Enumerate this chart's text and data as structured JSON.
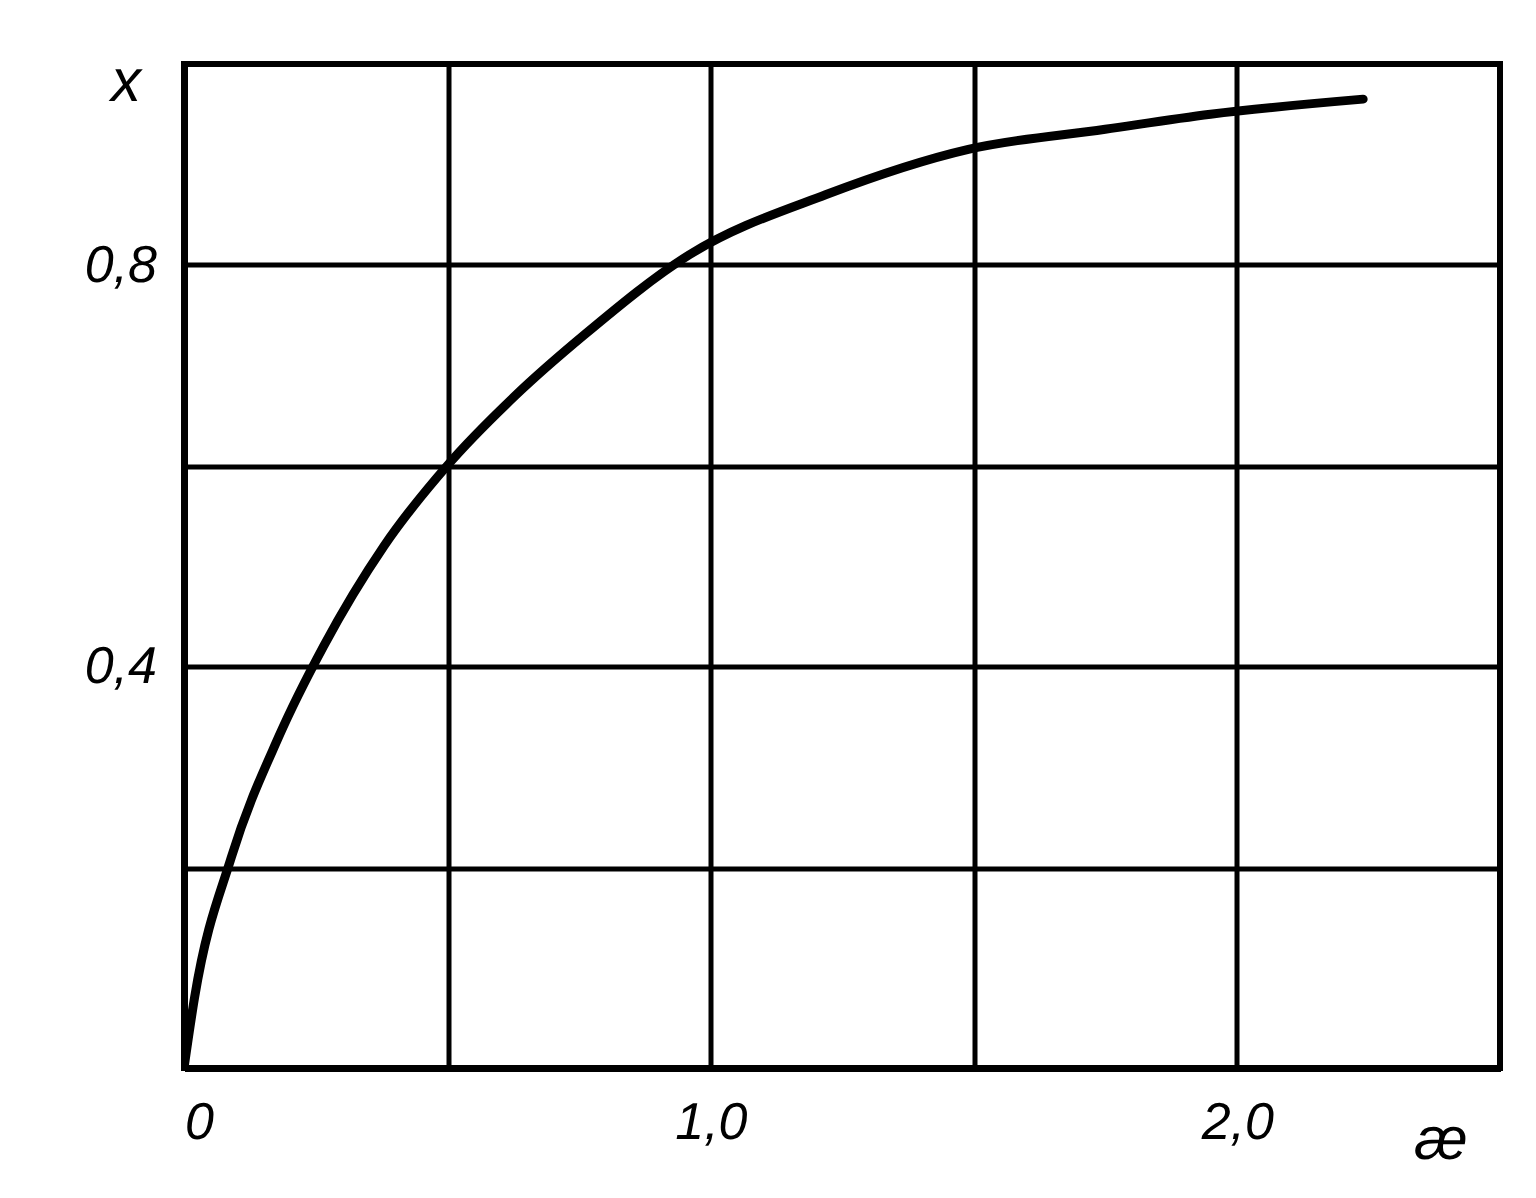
{
  "chart_data": {
    "type": "line",
    "xlabel": "æ",
    "ylabel": "x",
    "x": [
      0,
      0.02,
      0.09,
      0.18,
      0.265,
      0.38,
      0.5,
      0.63,
      0.76,
      0.96,
      1.22,
      1.49,
      1.75,
      1.95,
      2.24
    ],
    "series": [
      {
        "color": "#000000",
        "values": [
          0,
          0.07,
          0.21,
          0.33,
          0.42,
          0.52,
          0.6,
          0.67,
          0.73,
          0.81,
          0.87,
          0.915,
          0.935,
          0.95,
          0.965
        ]
      }
    ],
    "xlim": [
      0,
      2.5
    ],
    "ylim": [
      0,
      1
    ],
    "xticks": [
      {
        "value": 0,
        "label": "0"
      },
      {
        "value": 0.5,
        "label": null
      },
      {
        "value": 1,
        "label": "1,0"
      },
      {
        "value": 1.5,
        "label": null
      },
      {
        "value": 2,
        "label": "2,0"
      }
    ],
    "yticks": [
      {
        "value": 0,
        "label": null
      },
      {
        "value": 0.2,
        "label": null
      },
      {
        "value": 0.4,
        "label": "0,4"
      },
      {
        "value": 0.6,
        "label": null
      },
      {
        "value": 0.8,
        "label": "0,8"
      }
    ],
    "grid": true,
    "marker": "none",
    "line_style": "solid"
  }
}
